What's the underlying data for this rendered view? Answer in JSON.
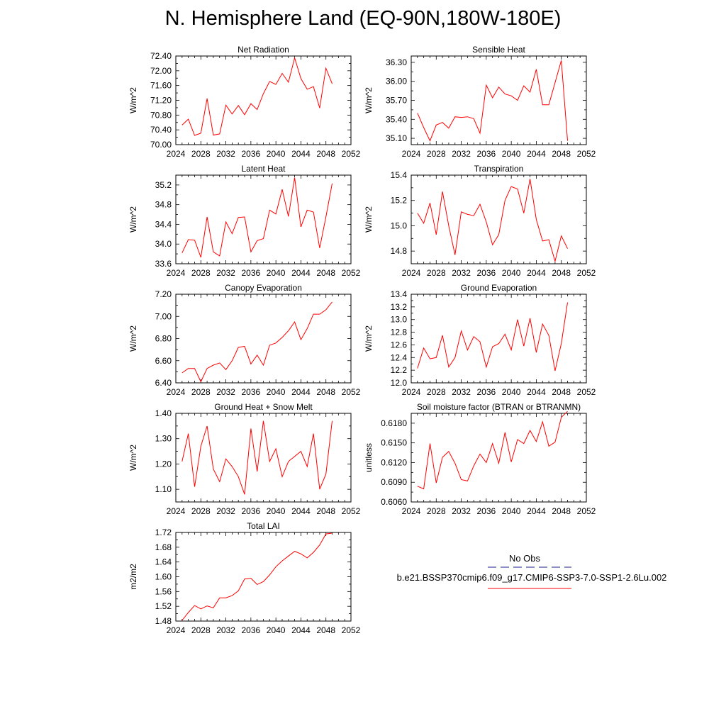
{
  "page": {
    "title": "N. Hemisphere Land (EQ-90N,180W-180E)"
  },
  "legend": {
    "title": "No Obs",
    "run_name": "b.e21.BSSP370cmip6.f09_g17.CMIP6-SSP3-7.0-SSP1-2.6Lu.002",
    "obs_color": "#1a1a8c",
    "run_color": "#ff0000"
  },
  "chart_data": [
    {
      "type": "line",
      "title": "Net Radiation",
      "ylabel": "W/m^2",
      "xlim": [
        2024,
        2052
      ],
      "ylim": [
        70.0,
        72.4
      ],
      "x_ticks": [
        2024,
        2028,
        2032,
        2036,
        2040,
        2044,
        2048,
        2052
      ],
      "y_ticks": [
        "70.00",
        "70.40",
        "70.80",
        "71.20",
        "71.60",
        "72.00",
        "72.40"
      ],
      "series": [
        {
          "color": "#ff0000",
          "x": [
            2025,
            2026,
            2027,
            2028,
            2029,
            2030,
            2031,
            2032,
            2033,
            2034,
            2035,
            2036,
            2037,
            2038,
            2039,
            2040,
            2041,
            2042,
            2043,
            2044,
            2045,
            2046,
            2047,
            2048,
            2049
          ],
          "y": [
            70.53,
            70.69,
            70.25,
            70.31,
            71.25,
            70.26,
            70.29,
            71.07,
            70.83,
            71.06,
            70.81,
            71.11,
            70.95,
            71.38,
            71.71,
            71.63,
            71.93,
            71.69,
            72.35,
            71.79,
            71.5,
            71.57,
            70.99,
            72.07,
            71.65
          ]
        }
      ]
    },
    {
      "type": "line",
      "title": "Sensible Heat",
      "ylabel": "W/m^2",
      "xlim": [
        2024,
        2052
      ],
      "ylim": [
        35.0,
        36.4
      ],
      "x_ticks": [
        2024,
        2028,
        2032,
        2036,
        2040,
        2044,
        2048,
        2052
      ],
      "y_ticks": [
        "35.10",
        "35.40",
        "35.70",
        "36.00",
        "36.30"
      ],
      "series": [
        {
          "color": "#ff0000",
          "x": [
            2025,
            2026,
            2027,
            2028,
            2029,
            2030,
            2031,
            2032,
            2033,
            2034,
            2035,
            2036,
            2037,
            2038,
            2039,
            2040,
            2041,
            2042,
            2043,
            2044,
            2045,
            2046,
            2047,
            2048,
            2049
          ],
          "y": [
            35.5,
            35.27,
            35.06,
            35.31,
            35.35,
            35.26,
            35.44,
            35.43,
            35.44,
            35.41,
            35.18,
            35.94,
            35.74,
            35.91,
            35.8,
            35.77,
            35.7,
            35.93,
            35.83,
            36.19,
            35.63,
            35.63,
            35.98,
            36.33,
            35.06
          ]
        }
      ]
    },
    {
      "type": "line",
      "title": "Latent Heat",
      "ylabel": "W/m^2",
      "xlim": [
        2024,
        2052
      ],
      "ylim": [
        33.6,
        35.4
      ],
      "x_ticks": [
        2024,
        2028,
        2032,
        2036,
        2040,
        2044,
        2048,
        2052
      ],
      "y_ticks": [
        "33.6",
        "34.0",
        "34.4",
        "34.8",
        "35.2"
      ],
      "series": [
        {
          "color": "#ff0000",
          "x": [
            2025,
            2026,
            2027,
            2028,
            2029,
            2030,
            2031,
            2032,
            2033,
            2034,
            2035,
            2036,
            2037,
            2038,
            2039,
            2040,
            2041,
            2042,
            2043,
            2044,
            2045,
            2046,
            2047,
            2048,
            2049
          ],
          "y": [
            33.82,
            34.09,
            34.08,
            33.73,
            34.55,
            33.84,
            33.76,
            34.45,
            34.21,
            34.54,
            34.55,
            33.84,
            34.07,
            34.11,
            34.69,
            34.61,
            35.11,
            34.56,
            35.35,
            34.35,
            34.69,
            34.65,
            33.92,
            34.55,
            35.23
          ]
        }
      ]
    },
    {
      "type": "line",
      "title": "Transpiration",
      "ylabel": "W/m^2",
      "xlim": [
        2024,
        2052
      ],
      "ylim": [
        14.7,
        15.4
      ],
      "x_ticks": [
        2024,
        2028,
        2032,
        2036,
        2040,
        2044,
        2048,
        2052
      ],
      "y_ticks": [
        "14.8",
        "15.0",
        "15.2",
        "15.4"
      ],
      "series": [
        {
          "color": "#ff0000",
          "x": [
            2025,
            2026,
            2027,
            2028,
            2029,
            2030,
            2031,
            2032,
            2033,
            2034,
            2035,
            2036,
            2037,
            2038,
            2039,
            2040,
            2041,
            2042,
            2043,
            2044,
            2045,
            2046,
            2047,
            2048,
            2049
          ],
          "y": [
            15.1,
            15.02,
            15.18,
            14.93,
            15.27,
            15.0,
            14.77,
            15.11,
            15.09,
            15.08,
            15.17,
            15.03,
            14.85,
            14.93,
            15.2,
            15.31,
            15.29,
            15.1,
            15.37,
            15.05,
            14.88,
            14.89,
            14.72,
            14.92,
            14.82
          ]
        }
      ]
    },
    {
      "type": "line",
      "title": "Canopy Evaporation",
      "ylabel": "W/m^2",
      "xlim": [
        2024,
        2052
      ],
      "ylim": [
        6.4,
        7.2
      ],
      "x_ticks": [
        2024,
        2028,
        2032,
        2036,
        2040,
        2044,
        2048,
        2052
      ],
      "y_ticks": [
        "6.40",
        "6.60",
        "6.80",
        "7.00",
        "7.20"
      ],
      "series": [
        {
          "color": "#ff0000",
          "x": [
            2025,
            2026,
            2027,
            2028,
            2029,
            2030,
            2031,
            2032,
            2033,
            2034,
            2035,
            2036,
            2037,
            2038,
            2039,
            2040,
            2041,
            2042,
            2043,
            2044,
            2045,
            2046,
            2047,
            2048,
            2049
          ],
          "y": [
            6.49,
            6.53,
            6.53,
            6.41,
            6.53,
            6.56,
            6.58,
            6.52,
            6.6,
            6.72,
            6.73,
            6.57,
            6.65,
            6.56,
            6.74,
            6.76,
            6.81,
            6.87,
            6.95,
            6.79,
            6.89,
            7.02,
            7.02,
            7.06,
            7.13
          ]
        }
      ]
    },
    {
      "type": "line",
      "title": "Ground Evaporation",
      "ylabel": "W/m^2",
      "xlim": [
        2024,
        2052
      ],
      "ylim": [
        12.0,
        13.4
      ],
      "x_ticks": [
        2024,
        2028,
        2032,
        2036,
        2040,
        2044,
        2048,
        2052
      ],
      "y_ticks": [
        "12.0",
        "12.2",
        "12.4",
        "12.6",
        "12.8",
        "13.0",
        "13.2",
        "13.4"
      ],
      "series": [
        {
          "color": "#ff0000",
          "x": [
            2025,
            2026,
            2027,
            2028,
            2029,
            2030,
            2031,
            2032,
            2033,
            2034,
            2035,
            2036,
            2037,
            2038,
            2039,
            2040,
            2041,
            2042,
            2043,
            2044,
            2045,
            2046,
            2047,
            2048,
            2049
          ],
          "y": [
            12.23,
            12.55,
            12.38,
            12.4,
            12.75,
            12.25,
            12.4,
            12.82,
            12.52,
            12.73,
            12.65,
            12.25,
            12.57,
            12.62,
            12.77,
            12.52,
            13.0,
            12.58,
            13.02,
            12.48,
            12.93,
            12.75,
            12.19,
            12.62,
            13.27
          ]
        }
      ]
    },
    {
      "type": "line",
      "title": "Ground Heat + Snow Melt",
      "ylabel": "W/m^2",
      "xlim": [
        2024,
        2052
      ],
      "ylim": [
        1.05,
        1.4
      ],
      "x_ticks": [
        2024,
        2028,
        2032,
        2036,
        2040,
        2044,
        2048,
        2052
      ],
      "y_ticks": [
        "1.10",
        "1.20",
        "1.30",
        "1.40"
      ],
      "series": [
        {
          "color": "#ff0000",
          "x": [
            2025,
            2026,
            2027,
            2028,
            2029,
            2030,
            2031,
            2032,
            2033,
            2034,
            2035,
            2036,
            2037,
            2038,
            2039,
            2040,
            2041,
            2042,
            2043,
            2044,
            2045,
            2046,
            2047,
            2048,
            2049
          ],
          "y": [
            1.21,
            1.32,
            1.11,
            1.27,
            1.35,
            1.18,
            1.13,
            1.22,
            1.19,
            1.15,
            1.08,
            1.34,
            1.17,
            1.37,
            1.21,
            1.26,
            1.15,
            1.21,
            1.23,
            1.25,
            1.19,
            1.32,
            1.1,
            1.16,
            1.37
          ]
        }
      ]
    },
    {
      "type": "line",
      "title": "Soil moisture factor (BTRAN or BTRANMN)",
      "ylabel": "unitless",
      "xlim": [
        2024,
        2052
      ],
      "ylim": [
        0.606,
        0.6195
      ],
      "x_ticks": [
        2024,
        2028,
        2032,
        2036,
        2040,
        2044,
        2048,
        2052
      ],
      "y_ticks": [
        "0.6060",
        "0.6090",
        "0.6120",
        "0.6150",
        "0.6180"
      ],
      "series": [
        {
          "color": "#ff0000",
          "x": [
            2025,
            2026,
            2027,
            2028,
            2029,
            2030,
            2031,
            2032,
            2033,
            2034,
            2035,
            2036,
            2037,
            2038,
            2039,
            2040,
            2041,
            2042,
            2043,
            2044,
            2045,
            2046,
            2047,
            2048,
            2049
          ],
          "y": [
            0.6084,
            0.608,
            0.6149,
            0.6089,
            0.6128,
            0.6137,
            0.6119,
            0.6094,
            0.6092,
            0.6115,
            0.6133,
            0.612,
            0.6149,
            0.6119,
            0.6166,
            0.6121,
            0.6155,
            0.6149,
            0.6169,
            0.6152,
            0.6182,
            0.6145,
            0.6151,
            0.6189,
            0.6198
          ]
        }
      ]
    },
    {
      "type": "line",
      "title": "Total LAI",
      "ylabel": "m2/m2",
      "xlim": [
        2024,
        2052
      ],
      "ylim": [
        1.48,
        1.72
      ],
      "x_ticks": [
        2024,
        2028,
        2032,
        2036,
        2040,
        2044,
        2048,
        2052
      ],
      "y_ticks": [
        "1.48",
        "1.52",
        "1.56",
        "1.60",
        "1.64",
        "1.68",
        "1.72"
      ],
      "series": [
        {
          "color": "#ff0000",
          "x": [
            2025,
            2026,
            2027,
            2028,
            2029,
            2030,
            2031,
            2032,
            2033,
            2034,
            2035,
            2036,
            2037,
            2038,
            2039,
            2040,
            2041,
            2042,
            2043,
            2044,
            2045,
            2046,
            2047,
            2048,
            2049
          ],
          "y": [
            1.482,
            1.503,
            1.522,
            1.513,
            1.521,
            1.516,
            1.543,
            1.543,
            1.549,
            1.562,
            1.594,
            1.596,
            1.579,
            1.587,
            1.605,
            1.627,
            1.643,
            1.656,
            1.669,
            1.662,
            1.651,
            1.666,
            1.686,
            1.716,
            1.718
          ]
        }
      ]
    }
  ]
}
